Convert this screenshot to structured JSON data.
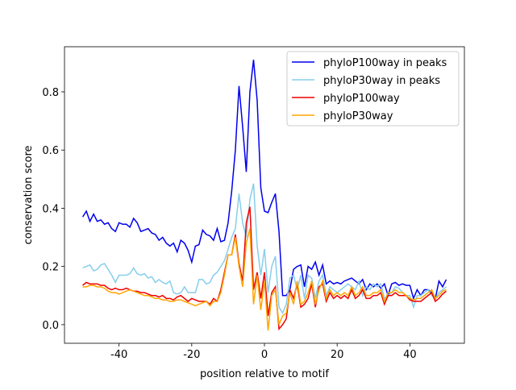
{
  "chart_data": {
    "type": "line",
    "xlabel": "position relative to motif",
    "ylabel": "conservation score",
    "x": [
      -50,
      -49,
      -48,
      -47,
      -46,
      -45,
      -44,
      -43,
      -42,
      -41,
      -40,
      -39,
      -38,
      -37,
      -36,
      -35,
      -34,
      -33,
      -32,
      -31,
      -30,
      -29,
      -28,
      -27,
      -26,
      -25,
      -24,
      -23,
      -22,
      -21,
      -20,
      -19,
      -18,
      -17,
      -16,
      -15,
      -14,
      -13,
      -12,
      -11,
      -10,
      -9,
      -8,
      -7,
      -6,
      -5,
      -4,
      -3,
      -2,
      -1,
      0,
      1,
      2,
      3,
      4,
      5,
      6,
      7,
      8,
      9,
      10,
      11,
      12,
      13,
      14,
      15,
      16,
      17,
      18,
      19,
      20,
      21,
      22,
      23,
      24,
      25,
      26,
      27,
      28,
      29,
      30,
      31,
      32,
      33,
      34,
      35,
      36,
      37,
      38,
      39,
      40,
      41,
      42,
      43,
      44,
      45,
      46,
      47,
      48,
      49,
      50
    ],
    "series": [
      {
        "name": "phyloP100way in peaks",
        "color": "#0000ee",
        "values": [
          0.37,
          0.39,
          0.355,
          0.38,
          0.355,
          0.36,
          0.345,
          0.35,
          0.33,
          0.32,
          0.35,
          0.345,
          0.345,
          0.335,
          0.365,
          0.35,
          0.32,
          0.325,
          0.33,
          0.315,
          0.31,
          0.29,
          0.3,
          0.28,
          0.27,
          0.28,
          0.25,
          0.29,
          0.28,
          0.255,
          0.215,
          0.27,
          0.275,
          0.325,
          0.31,
          0.305,
          0.29,
          0.33,
          0.285,
          0.29,
          0.35,
          0.46,
          0.6,
          0.82,
          0.68,
          0.525,
          0.8,
          0.91,
          0.77,
          0.47,
          0.39,
          0.385,
          0.42,
          0.45,
          0.32,
          0.1,
          0.1,
          0.12,
          0.19,
          0.2,
          0.205,
          0.13,
          0.2,
          0.19,
          0.215,
          0.17,
          0.205,
          0.14,
          0.15,
          0.14,
          0.145,
          0.14,
          0.15,
          0.155,
          0.16,
          0.15,
          0.14,
          0.155,
          0.12,
          0.14,
          0.13,
          0.14,
          0.125,
          0.14,
          0.1,
          0.14,
          0.145,
          0.135,
          0.14,
          0.135,
          0.135,
          0.09,
          0.12,
          0.1,
          0.12,
          0.12,
          0.11,
          0.09,
          0.15,
          0.13,
          0.155
        ]
      },
      {
        "name": "phyloP30way in peaks",
        "color": "#87ceeb",
        "values": [
          0.195,
          0.2,
          0.205,
          0.185,
          0.19,
          0.205,
          0.21,
          0.19,
          0.17,
          0.145,
          0.17,
          0.17,
          0.17,
          0.175,
          0.195,
          0.175,
          0.17,
          0.175,
          0.16,
          0.165,
          0.145,
          0.155,
          0.145,
          0.14,
          0.15,
          0.11,
          0.105,
          0.11,
          0.13,
          0.11,
          0.11,
          0.11,
          0.155,
          0.155,
          0.14,
          0.145,
          0.17,
          0.18,
          0.2,
          0.22,
          0.26,
          0.3,
          0.33,
          0.45,
          0.35,
          0.3,
          0.43,
          0.485,
          0.27,
          0.17,
          0.26,
          0.11,
          0.2,
          0.235,
          0.06,
          0.04,
          0.07,
          0.16,
          0.17,
          0.12,
          0.17,
          0.09,
          0.17,
          0.16,
          0.09,
          0.15,
          0.17,
          0.1,
          0.13,
          0.12,
          0.11,
          0.12,
          0.13,
          0.14,
          0.13,
          0.12,
          0.15,
          0.1,
          0.13,
          0.12,
          0.14,
          0.13,
          0.14,
          0.09,
          0.1,
          0.11,
          0.13,
          0.125,
          0.11,
          0.1,
          0.1,
          0.06,
          0.1,
          0.1,
          0.11,
          0.12,
          0.1,
          0.09,
          0.11,
          0.12,
          0.13
        ]
      },
      {
        "name": "phyloP100way",
        "color": "#ee0000",
        "values": [
          0.135,
          0.145,
          0.14,
          0.14,
          0.14,
          0.135,
          0.135,
          0.125,
          0.12,
          0.125,
          0.12,
          0.12,
          0.125,
          0.12,
          0.115,
          0.115,
          0.11,
          0.11,
          0.105,
          0.1,
          0.1,
          0.095,
          0.1,
          0.09,
          0.09,
          0.085,
          0.095,
          0.1,
          0.09,
          0.08,
          0.09,
          0.085,
          0.08,
          0.08,
          0.08,
          0.07,
          0.09,
          0.08,
          0.12,
          0.18,
          0.24,
          0.24,
          0.31,
          0.21,
          0.15,
          0.35,
          0.405,
          0.12,
          0.18,
          0.09,
          0.18,
          0.03,
          0.11,
          0.13,
          -0.015,
          0.0,
          0.02,
          0.12,
          0.09,
          0.14,
          0.06,
          0.07,
          0.09,
          0.14,
          0.06,
          0.13,
          0.14,
          0.08,
          0.11,
          0.09,
          0.1,
          0.09,
          0.1,
          0.09,
          0.12,
          0.09,
          0.1,
          0.12,
          0.09,
          0.09,
          0.1,
          0.1,
          0.11,
          0.07,
          0.1,
          0.1,
          0.11,
          0.1,
          0.1,
          0.1,
          0.085,
          0.08,
          0.08,
          0.08,
          0.09,
          0.1,
          0.11,
          0.08,
          0.09,
          0.105,
          0.115
        ]
      },
      {
        "name": "phyloP30way",
        "color": "#ffa500",
        "values": [
          0.13,
          0.13,
          0.135,
          0.135,
          0.13,
          0.13,
          0.125,
          0.115,
          0.11,
          0.11,
          0.105,
          0.11,
          0.115,
          0.12,
          0.115,
          0.11,
          0.105,
          0.1,
          0.1,
          0.095,
          0.09,
          0.09,
          0.085,
          0.085,
          0.08,
          0.08,
          0.085,
          0.085,
          0.08,
          0.075,
          0.07,
          0.065,
          0.07,
          0.075,
          0.08,
          0.065,
          0.08,
          0.08,
          0.11,
          0.17,
          0.24,
          0.24,
          0.3,
          0.2,
          0.13,
          0.28,
          0.33,
          0.07,
          0.17,
          0.05,
          0.15,
          -0.02,
          0.1,
          0.12,
          0.0,
          0.03,
          0.04,
          0.11,
          0.07,
          0.15,
          0.07,
          0.08,
          0.11,
          0.15,
          0.07,
          0.12,
          0.15,
          0.09,
          0.12,
          0.1,
          0.11,
          0.1,
          0.11,
          0.1,
          0.13,
          0.1,
          0.11,
          0.13,
          0.1,
          0.1,
          0.11,
          0.11,
          0.12,
          0.08,
          0.11,
          0.11,
          0.12,
          0.11,
          0.11,
          0.1,
          0.09,
          0.085,
          0.09,
          0.09,
          0.1,
          0.11,
          0.12,
          0.09,
          0.1,
          0.115,
          0.12
        ]
      }
    ],
    "xlim": [
      -55,
      55
    ],
    "ylim": [
      -0.064,
      0.955
    ],
    "xticks": [
      -40,
      -20,
      0,
      20,
      40
    ],
    "yticks": [
      {
        "value": 0,
        "label": "0.0"
      },
      {
        "value": 0.2,
        "label": "0.2"
      },
      {
        "value": 0.4,
        "label": "0.4"
      },
      {
        "value": 0.6,
        "label": "0.6"
      },
      {
        "value": 0.8,
        "label": "0.8"
      }
    ],
    "grid": false,
    "legend": "upper right"
  }
}
